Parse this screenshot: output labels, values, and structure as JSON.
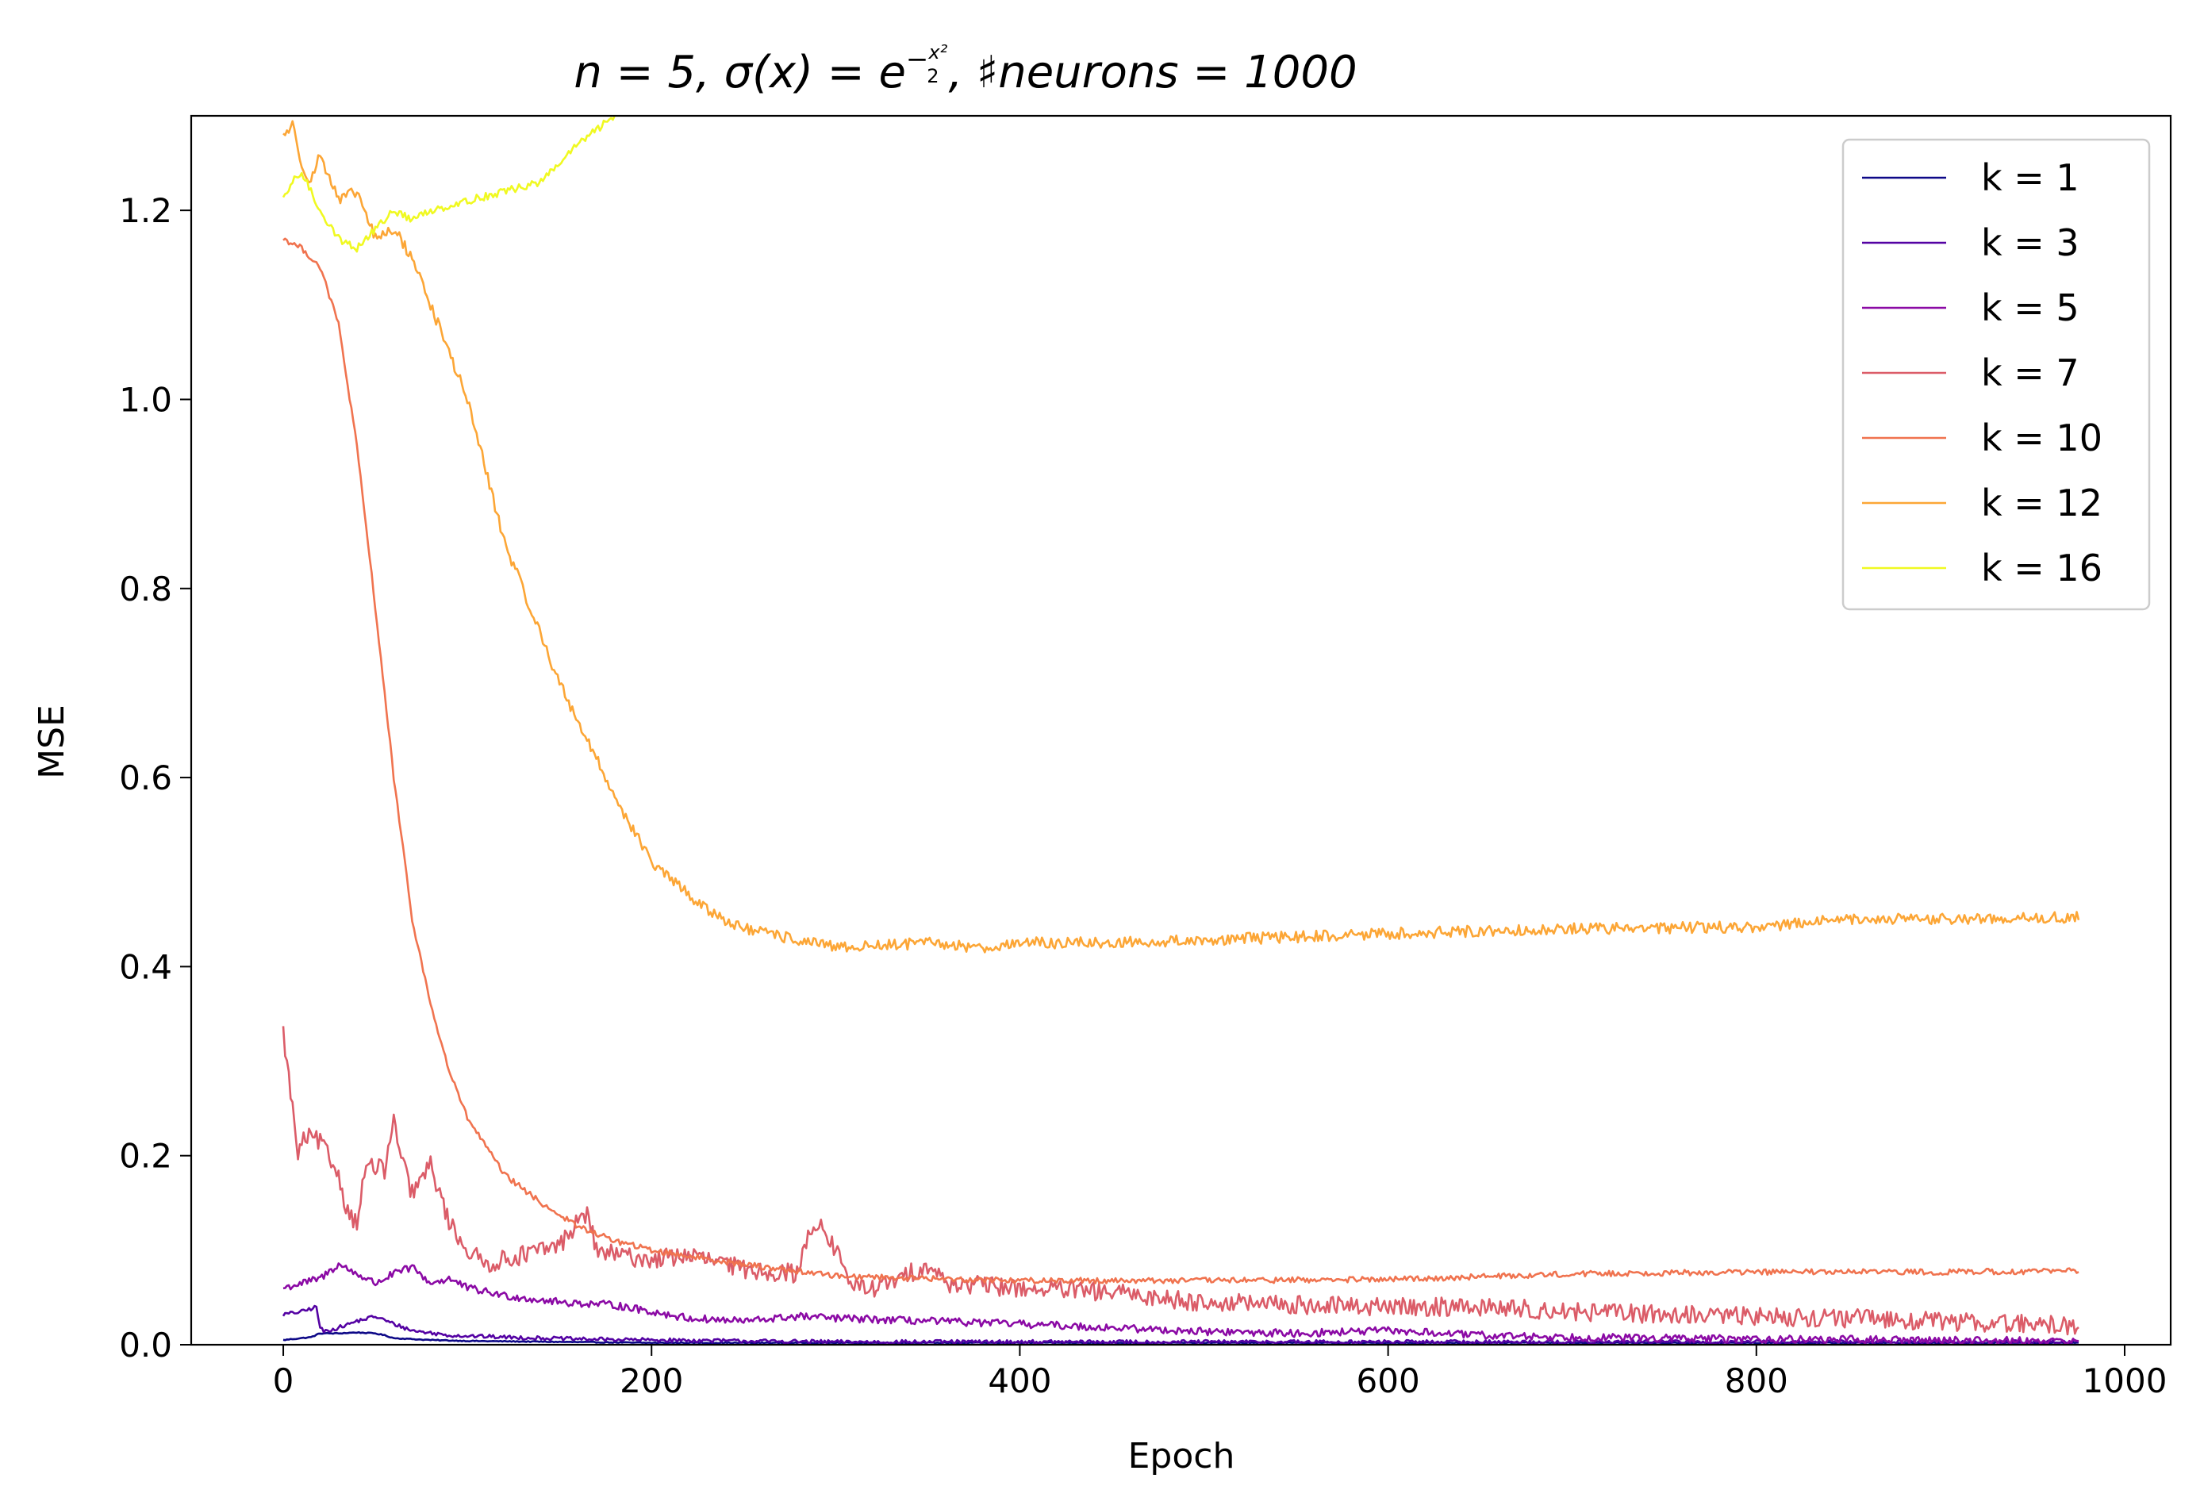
{
  "chart_data": {
    "type": "line",
    "title": {
      "part1": "n = 5, σ(x) = e",
      "sup_minus": "−",
      "frac_num": "x²",
      "frac_den": "2",
      "part2": ", ♯neurons = 1000"
    },
    "xlabel": "Epoch",
    "ylabel": "MSE",
    "xlim": [
      -50,
      1025
    ],
    "ylim": [
      0.0,
      1.3
    ],
    "xticks": [
      0,
      200,
      400,
      600,
      800,
      1000
    ],
    "yticks": [
      0.0,
      0.2,
      0.4,
      0.6,
      0.8,
      1.0,
      1.2
    ],
    "xtick_labels": [
      "0",
      "200",
      "400",
      "600",
      "800",
      "1000"
    ],
    "ytick_labels": [
      "0.0",
      "0.2",
      "0.4",
      "0.6",
      "0.8",
      "1.0",
      "1.2"
    ],
    "grid": false,
    "legend": "top-right",
    "series": [
      {
        "name": "k = 1",
        "color": "#0d0887",
        "noise": 0.0005,
        "x": [
          0,
          15,
          20,
          30,
          40,
          50,
          55,
          60,
          80,
          100,
          150,
          200,
          300,
          400,
          600,
          800,
          975
        ],
        "y": [
          0.005,
          0.008,
          0.012,
          0.012,
          0.013,
          0.012,
          0.01,
          0.007,
          0.005,
          0.004,
          0.003,
          0.002,
          0.002,
          0.002,
          0.002,
          0.002,
          0.002
        ]
      },
      {
        "name": "k = 3",
        "color": "#5402a3",
        "noise": 0.002,
        "x": [
          0,
          10,
          18,
          20,
          22,
          30,
          40,
          50,
          60,
          70,
          90,
          120,
          160,
          200,
          250,
          300,
          400,
          600,
          800,
          975
        ],
        "y": [
          0.032,
          0.035,
          0.04,
          0.018,
          0.014,
          0.018,
          0.025,
          0.03,
          0.022,
          0.015,
          0.01,
          0.008,
          0.006,
          0.005,
          0.004,
          0.003,
          0.003,
          0.003,
          0.003,
          0.003
        ]
      },
      {
        "name": "k = 5",
        "color": "#8b0aa5",
        "noise": 0.004,
        "x": [
          0,
          10,
          20,
          30,
          40,
          50,
          60,
          70,
          80,
          90,
          100,
          120,
          150,
          180,
          200,
          220,
          250,
          280,
          300,
          350,
          400,
          450,
          500,
          550,
          600,
          650,
          700,
          800,
          900,
          975
        ],
        "y": [
          0.06,
          0.065,
          0.07,
          0.085,
          0.075,
          0.065,
          0.075,
          0.082,
          0.065,
          0.07,
          0.06,
          0.052,
          0.045,
          0.042,
          0.035,
          0.028,
          0.025,
          0.03,
          0.028,
          0.025,
          0.022,
          0.018,
          0.014,
          0.012,
          0.015,
          0.01,
          0.008,
          0.006,
          0.005,
          0.004
        ]
      },
      {
        "name": "k = 7",
        "color": "#db5c68",
        "noise": 0.01,
        "x": [
          0,
          5,
          8,
          12,
          20,
          30,
          35,
          40,
          45,
          55,
          60,
          65,
          70,
          80,
          90,
          100,
          110,
          130,
          150,
          160,
          165,
          170,
          180,
          200,
          220,
          250,
          280,
          285,
          290,
          300,
          310,
          320,
          330,
          350,
          360,
          400,
          450,
          500,
          550,
          600,
          650,
          700,
          750,
          800,
          850,
          900,
          975
        ],
        "y": [
          0.33,
          0.25,
          0.2,
          0.22,
          0.215,
          0.18,
          0.14,
          0.13,
          0.19,
          0.185,
          0.235,
          0.19,
          0.16,
          0.19,
          0.13,
          0.1,
          0.085,
          0.095,
          0.105,
          0.13,
          0.14,
          0.1,
          0.095,
          0.09,
          0.095,
          0.08,
          0.075,
          0.12,
          0.13,
          0.1,
          0.06,
          0.06,
          0.065,
          0.085,
          0.065,
          0.06,
          0.055,
          0.045,
          0.042,
          0.04,
          0.04,
          0.035,
          0.032,
          0.03,
          0.028,
          0.025,
          0.02
        ]
      },
      {
        "name": "k = 10",
        "color": "#f0734f",
        "noise": 0.003,
        "x": [
          0,
          10,
          20,
          30,
          40,
          50,
          60,
          70,
          80,
          90,
          100,
          120,
          140,
          160,
          180,
          200,
          250,
          300,
          350,
          400,
          500,
          600,
          700,
          800,
          900,
          975
        ],
        "y": [
          1.17,
          1.16,
          1.14,
          1.08,
          0.95,
          0.78,
          0.6,
          0.45,
          0.36,
          0.29,
          0.24,
          0.18,
          0.15,
          0.125,
          0.11,
          0.1,
          0.085,
          0.073,
          0.07,
          0.068,
          0.068,
          0.069,
          0.075,
          0.077,
          0.077,
          0.078
        ]
      },
      {
        "name": "k = 12",
        "color": "#fca636",
        "noise": 0.006,
        "x": [
          0,
          5,
          10,
          15,
          20,
          30,
          40,
          50,
          60,
          70,
          80,
          90,
          100,
          120,
          150,
          180,
          200,
          230,
          250,
          300,
          350,
          380,
          400,
          450,
          500,
          600,
          700,
          800,
          850,
          900,
          975
        ],
        "y": [
          1.28,
          1.29,
          1.25,
          1.23,
          1.26,
          1.21,
          1.22,
          1.17,
          1.18,
          1.15,
          1.1,
          1.05,
          1.0,
          0.85,
          0.7,
          0.58,
          0.51,
          0.46,
          0.44,
          0.42,
          0.425,
          0.42,
          0.425,
          0.425,
          0.428,
          0.435,
          0.44,
          0.442,
          0.45,
          0.45,
          0.452
        ]
      },
      {
        "name": "k = 16",
        "color": "#f0f921",
        "noise": 0.004,
        "x": [
          0,
          5,
          10,
          15,
          20,
          30,
          40,
          50,
          60,
          70,
          80,
          100,
          120,
          140,
          160,
          180
        ],
        "y": [
          1.21,
          1.23,
          1.24,
          1.22,
          1.2,
          1.17,
          1.16,
          1.18,
          1.2,
          1.19,
          1.2,
          1.21,
          1.22,
          1.23,
          1.27,
          1.3
        ]
      }
    ]
  }
}
